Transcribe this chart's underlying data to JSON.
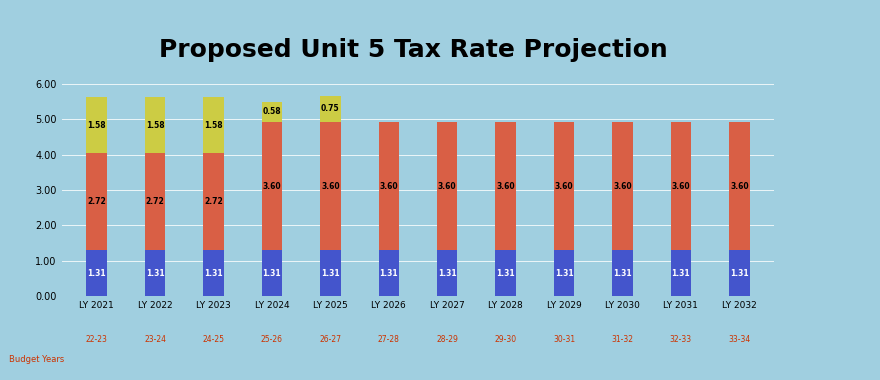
{
  "title": "Proposed Unit 5 Tax Rate Projection",
  "categories": [
    "LY 2021",
    "LY 2022",
    "LY 2023",
    "LY 2024",
    "LY 2025",
    "LY 2026",
    "LY 2027",
    "LY 2028",
    "LY 2029",
    "LY 2030",
    "LY 2031",
    "LY 2032"
  ],
  "budget_years": [
    "22-23",
    "23-24",
    "24-25",
    "25-26",
    "26-27",
    "27-28",
    "28-29",
    "29-30",
    "30-31",
    "31-32",
    "32-33",
    "33-34"
  ],
  "all_other": [
    1.31,
    1.31,
    1.31,
    1.31,
    1.31,
    1.31,
    1.31,
    1.31,
    1.31,
    1.31,
    1.31,
    1.31
  ],
  "ed_fund": [
    2.72,
    2.72,
    2.72,
    3.6,
    3.6,
    3.6,
    3.6,
    3.6,
    3.6,
    3.6,
    3.6,
    3.6
  ],
  "bni": [
    1.58,
    1.58,
    1.58,
    0.58,
    0.75,
    0.0,
    0.0,
    0.0,
    0.0,
    0.0,
    0.0,
    0.0
  ],
  "color_all_other": "#4455cc",
  "color_ed_fund": "#d95f45",
  "color_bni": "#cccc44",
  "background_color": "#a0cfe0",
  "ylim": [
    0,
    6.0
  ],
  "yticks": [
    0.0,
    1.0,
    2.0,
    3.0,
    4.0,
    5.0,
    6.0
  ],
  "xlabel_budget": "Budget Years",
  "title_fontsize": 18,
  "bar_width": 0.35,
  "label_fontsize": 5.5
}
